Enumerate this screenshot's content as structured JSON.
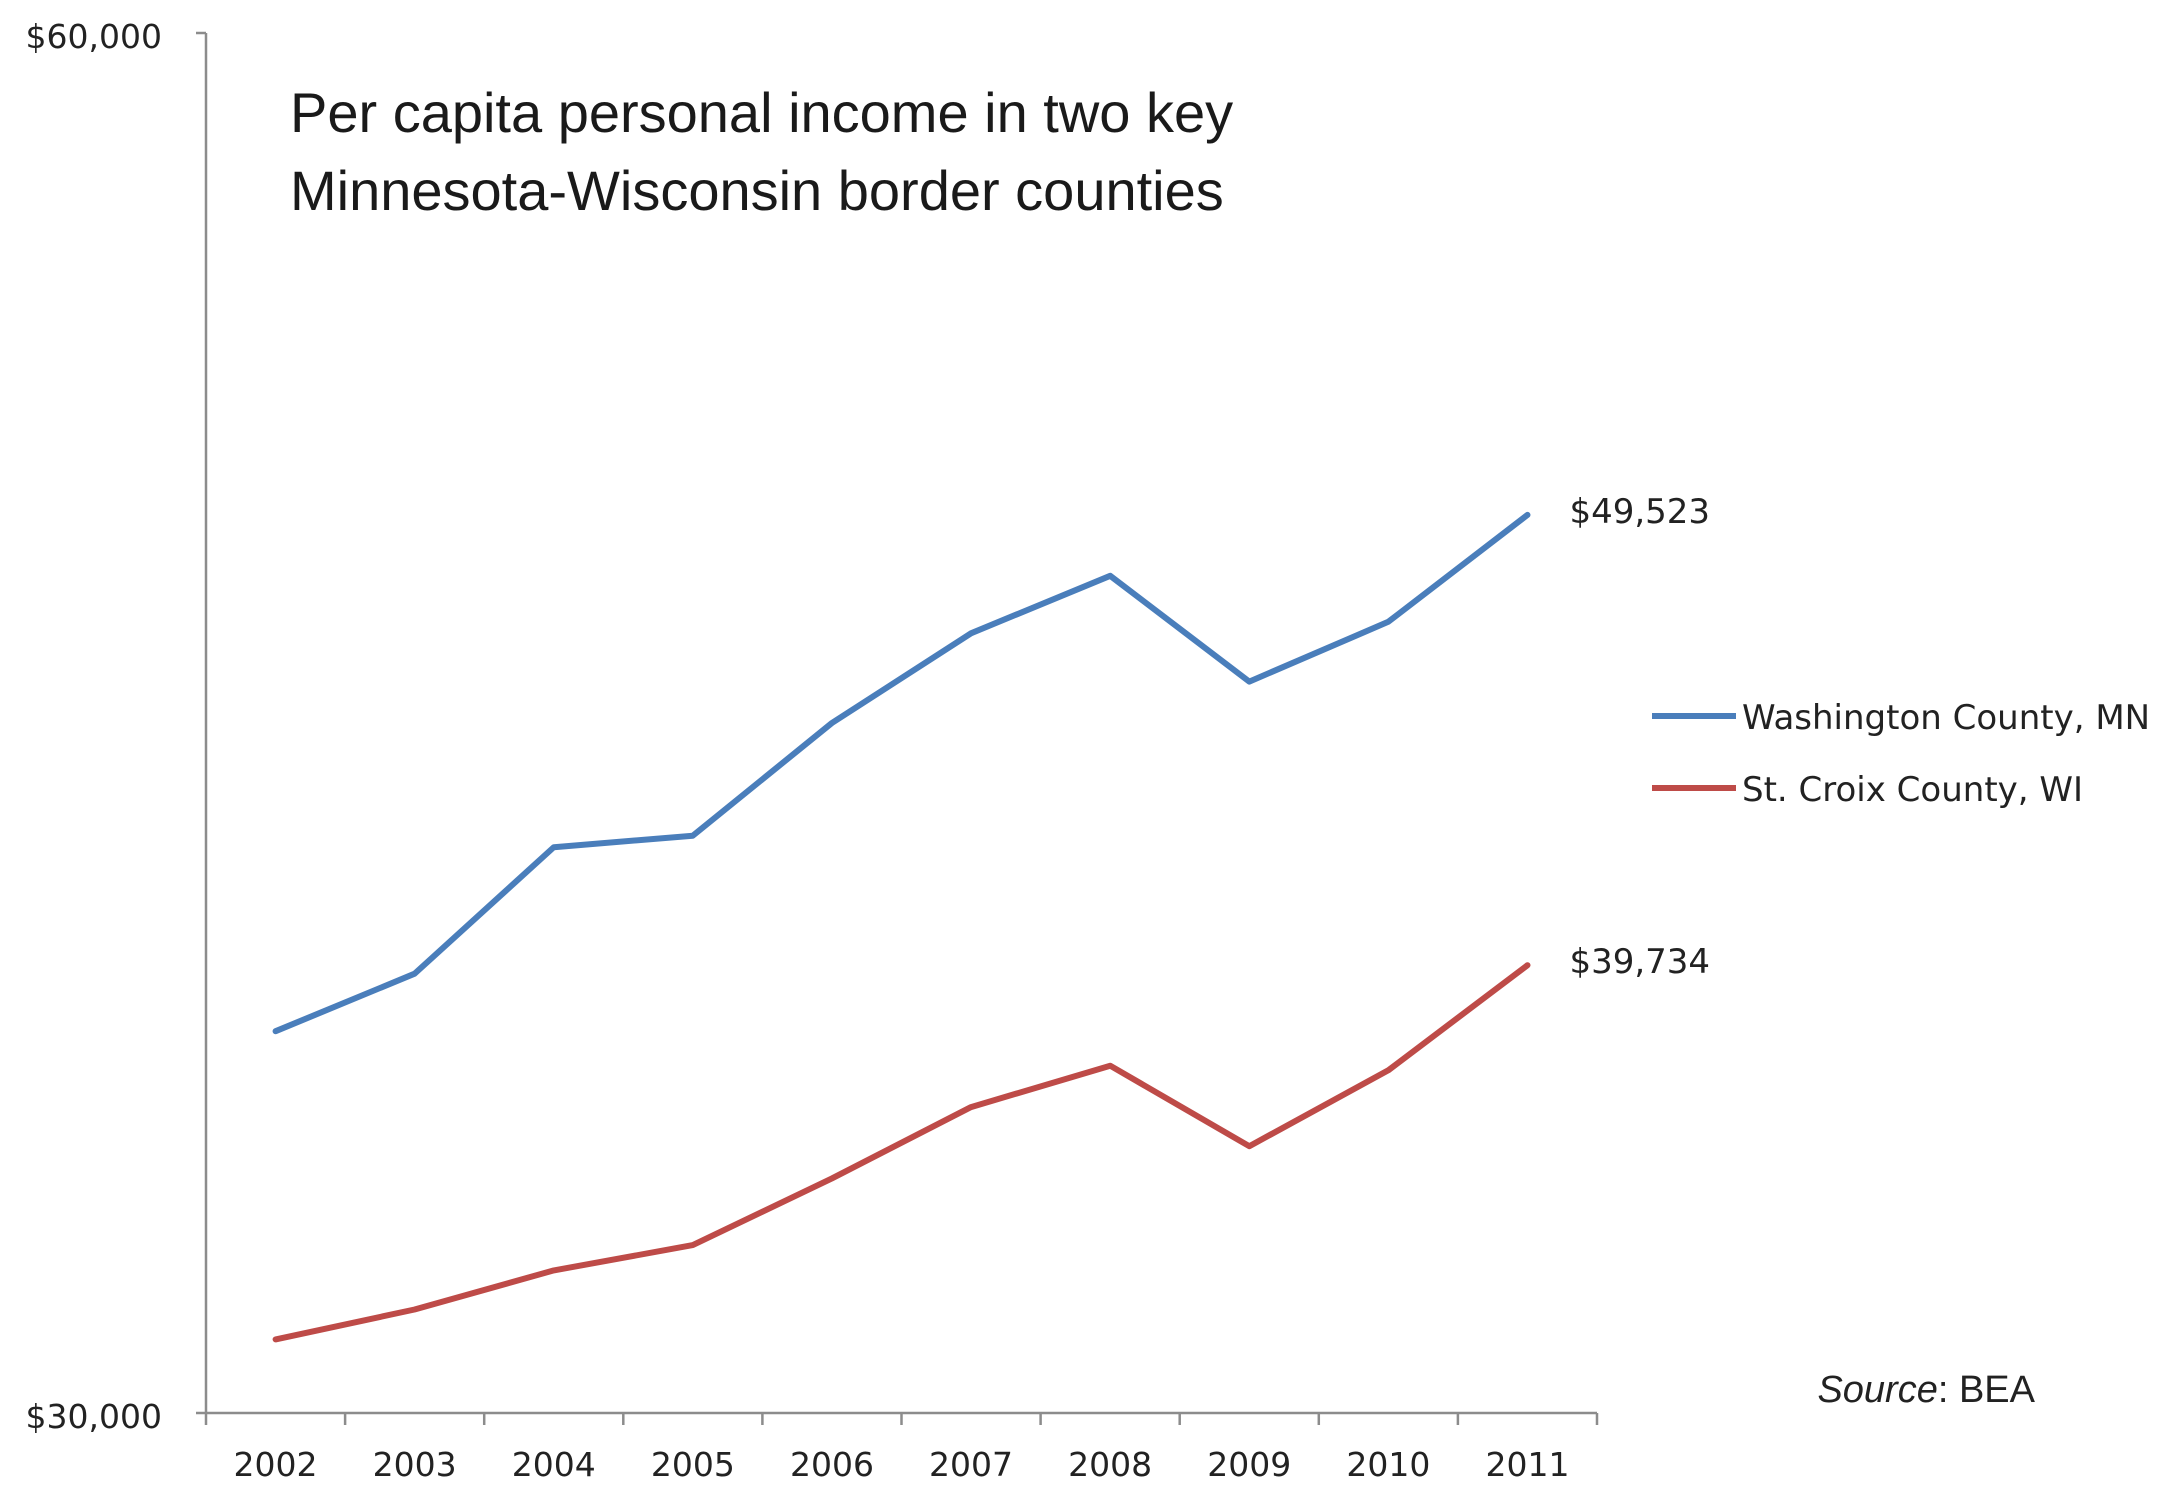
{
  "chart_data": {
    "type": "line",
    "title_lines": [
      "Per capita personal income in two key",
      "Minnesota-Wisconsin border counties"
    ],
    "categories": [
      "2002",
      "2003",
      "2004",
      "2005",
      "2006",
      "2007",
      "2008",
      "2009",
      "2010",
      "2011"
    ],
    "ylim": [
      30000,
      60000
    ],
    "y_tick_labels": [
      "$60,000",
      "$30,000"
    ],
    "series": [
      {
        "name": "Washington County, MN",
        "color": "#4a7ebb",
        "values": [
          38300,
          39550,
          42300,
          42550,
          45000,
          46950,
          48200,
          45900,
          47200,
          49523
        ],
        "end_label": "$49,523"
      },
      {
        "name": "St. Croix County, WI",
        "color": "#be4b48",
        "values": [
          31600,
          32250,
          33100,
          33650,
          35100,
          36650,
          37550,
          35800,
          37450,
          39734
        ],
        "end_label": "$39,734"
      }
    ],
    "legend_position": "right",
    "source": {
      "prefix": "Source",
      "text": ": BEA"
    }
  }
}
